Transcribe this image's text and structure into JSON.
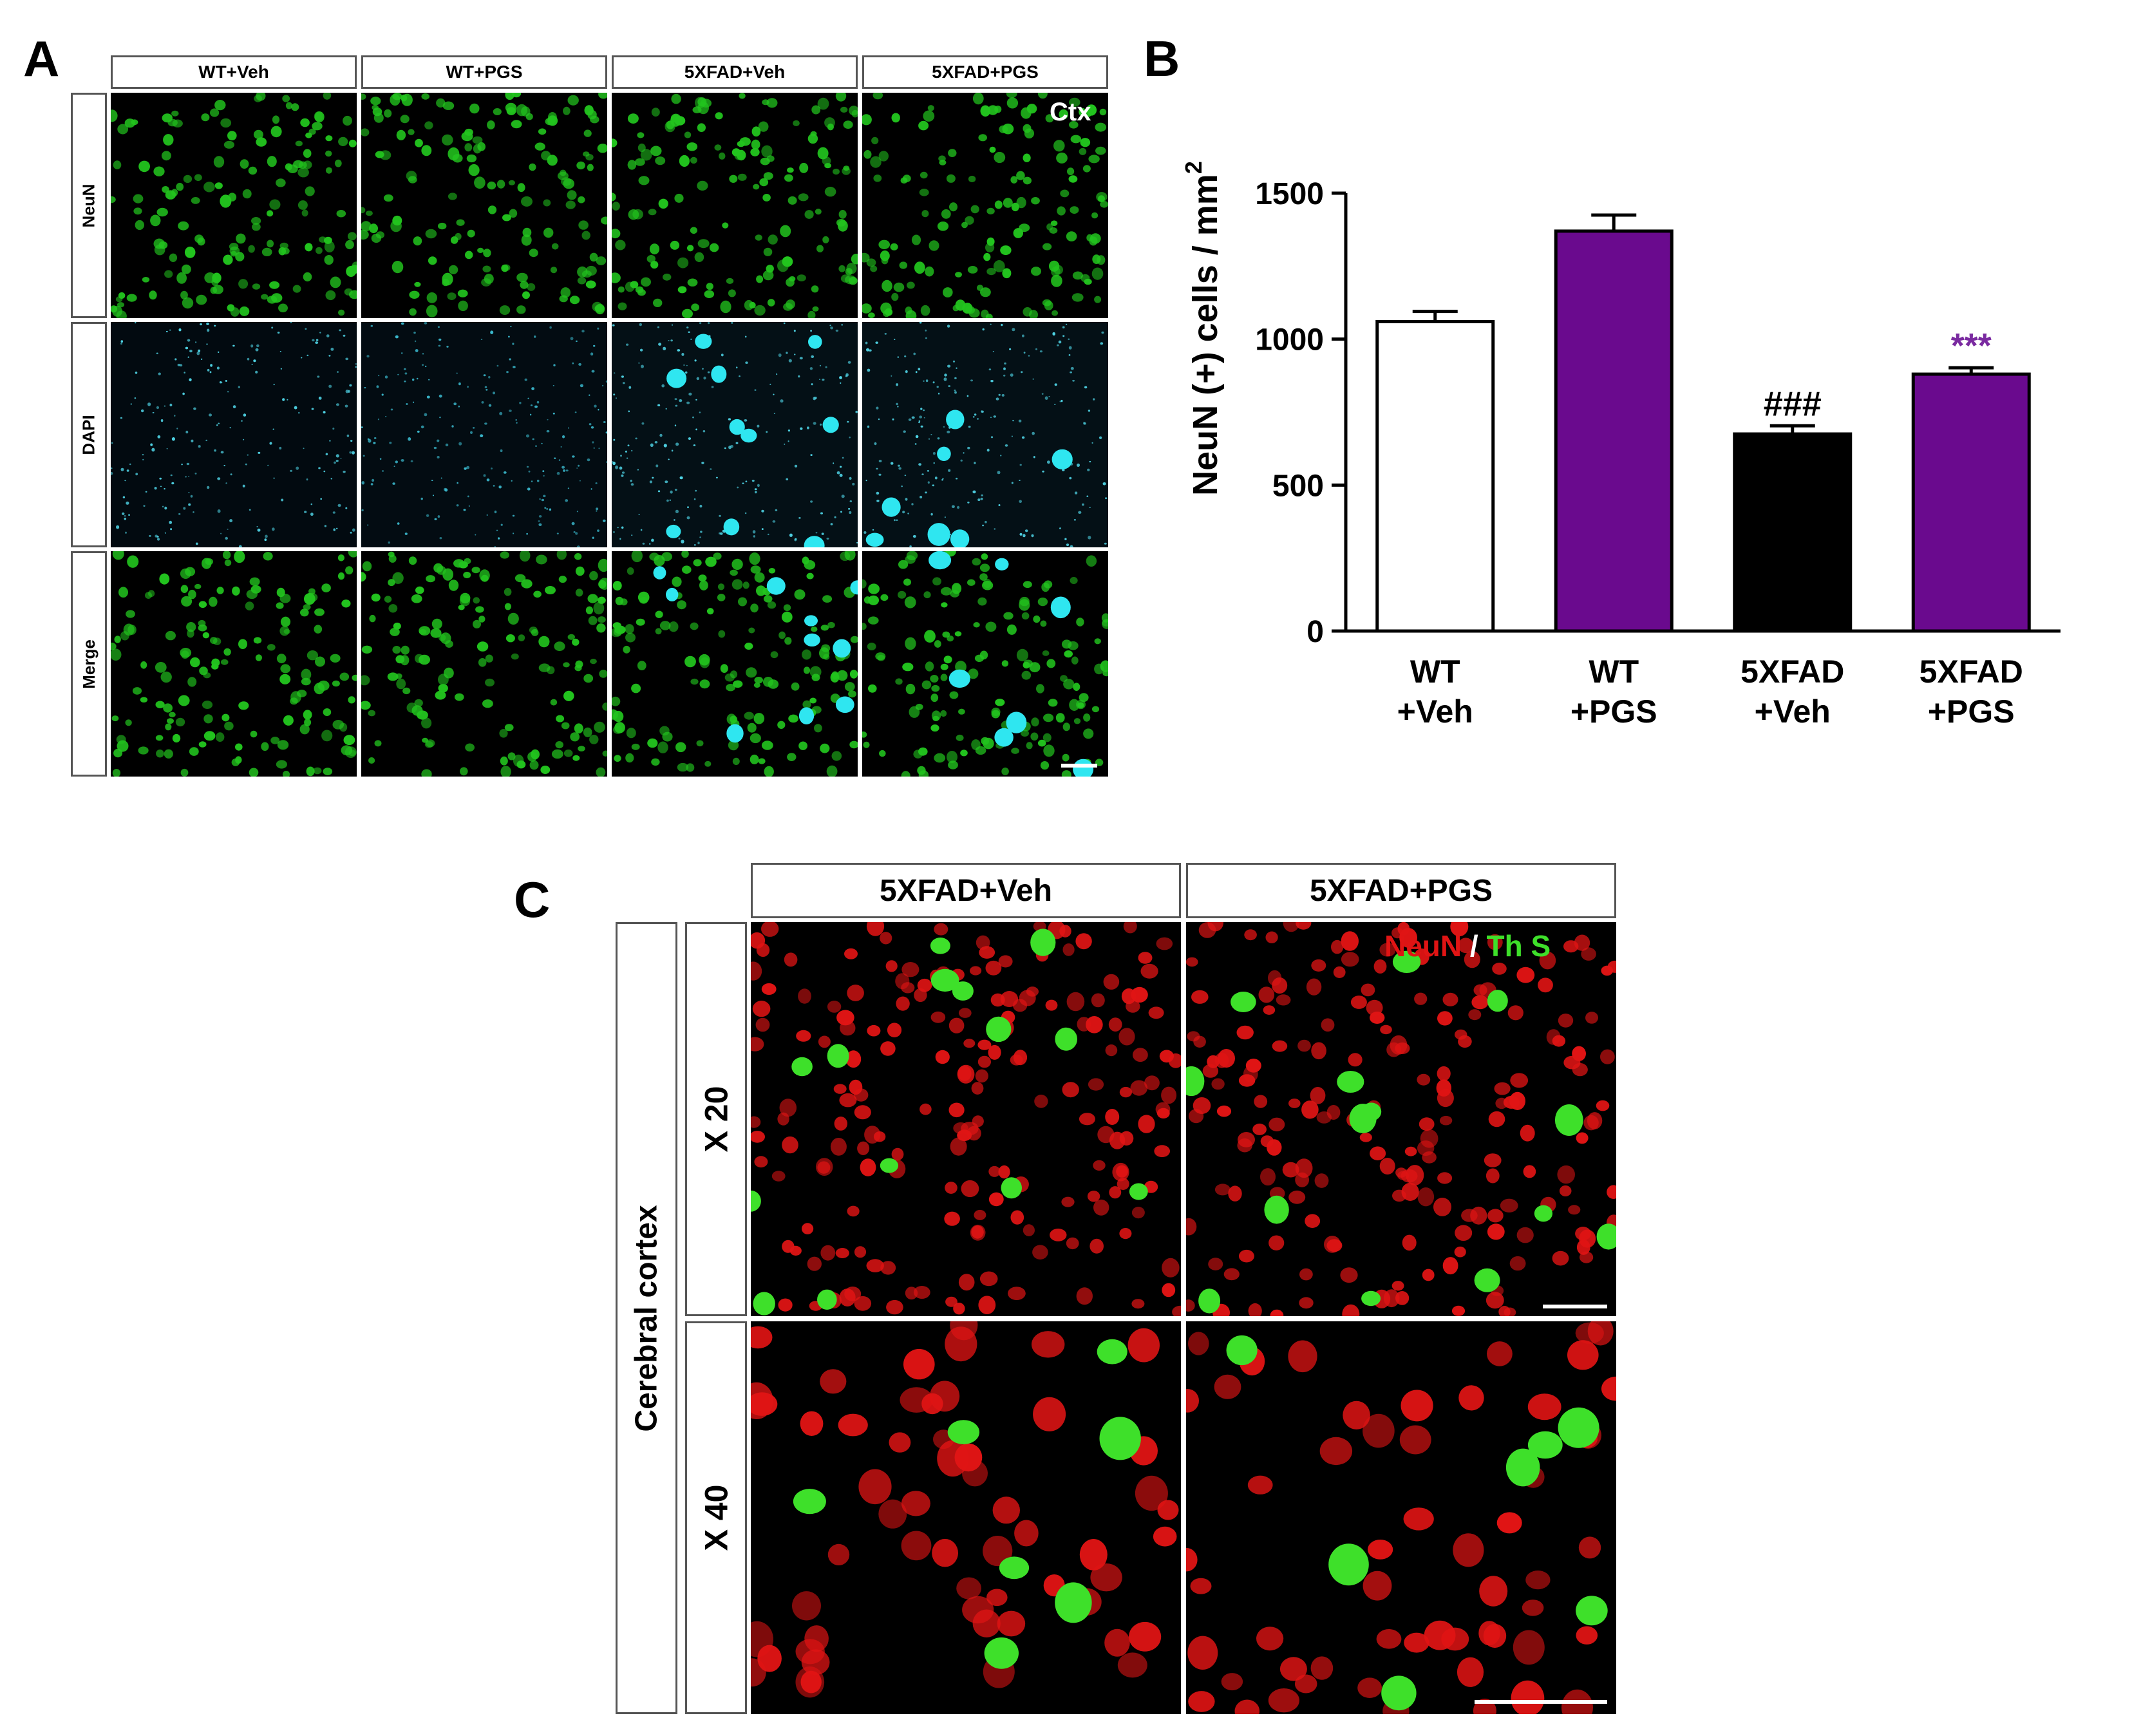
{
  "panelA": {
    "letter": "A",
    "columns": [
      "WT+Veh",
      "WT+PGS",
      "5XFAD+Veh",
      "5XFAD+PGS"
    ],
    "rows": [
      "NeuN",
      "DAPI",
      "Merge"
    ],
    "region_label": "Ctx"
  },
  "panelB": {
    "letter": "B"
  },
  "chart_data": {
    "type": "bar",
    "categories": [
      "WT +Veh",
      "WT +PGS",
      "5XFAD +Veh",
      "5XFAD +PGS"
    ],
    "category_lines": [
      [
        "WT",
        "+Veh"
      ],
      [
        "WT",
        "+PGS"
      ],
      [
        "5XFAD",
        "+Veh"
      ],
      [
        "5XFAD",
        "+PGS"
      ]
    ],
    "values": [
      1060,
      1370,
      675,
      880
    ],
    "errors": [
      35,
      55,
      28,
      22
    ],
    "bar_colors": [
      "#ffffff",
      "#6a0a8e",
      "#000000",
      "#6a0a8e"
    ],
    "annotations": [
      "",
      "",
      "###",
      "***"
    ],
    "annotation_colors": [
      "#000000",
      "#000000",
      "#000000",
      "#7a2aa0"
    ],
    "ylabel": "NeuN (+) cells / mm",
    "ylabel_superscript": "2",
    "ylim": [
      0,
      1500
    ],
    "yticks": [
      0,
      500,
      1000,
      1500
    ],
    "grid": false,
    "title": "",
    "xlabel": ""
  },
  "panelC": {
    "letter": "C",
    "columns": [
      "5XFAD+Veh",
      "5XFAD+PGS"
    ],
    "side_label": "Cerebral cortex",
    "rows": [
      "X 20",
      "X 40"
    ],
    "legend_neun": "NeuN",
    "legend_sep": "/",
    "legend_ths": "Th S"
  }
}
